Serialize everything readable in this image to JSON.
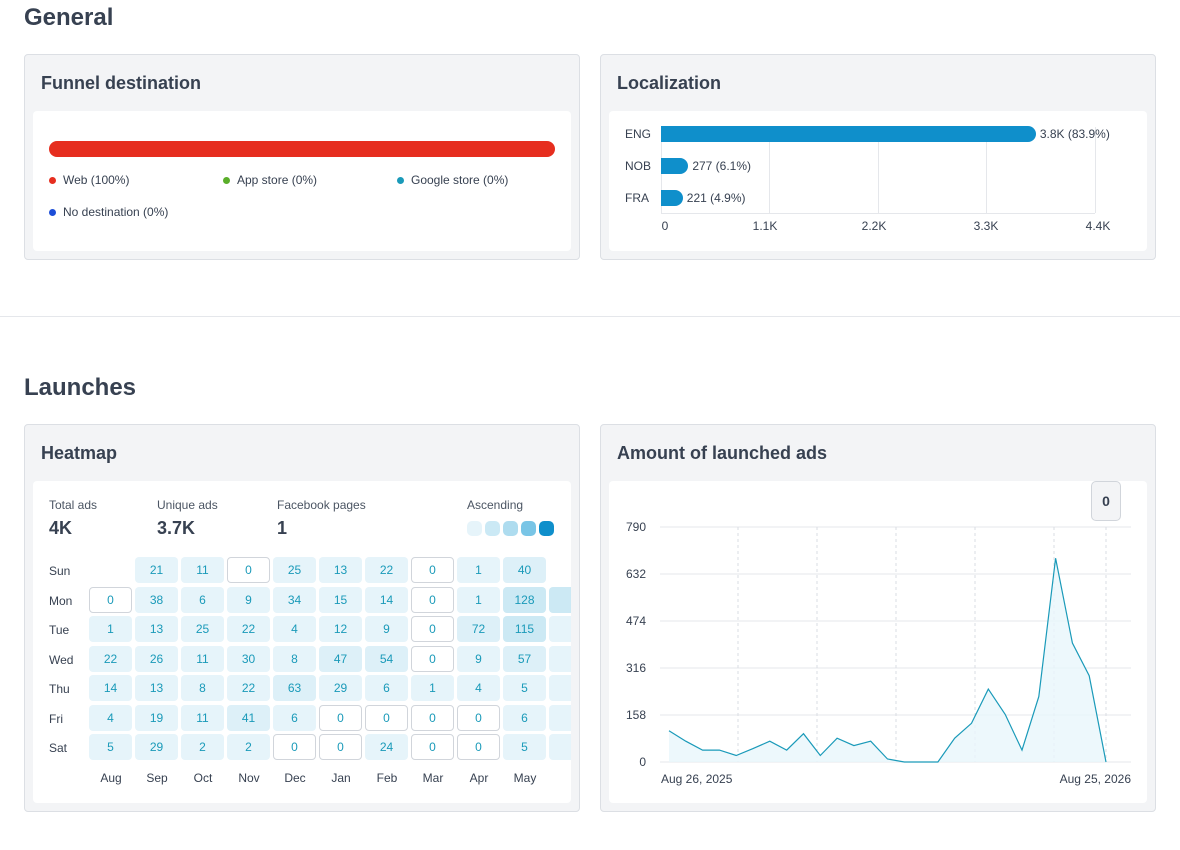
{
  "sections": {
    "general": "General",
    "launches": "Launches"
  },
  "funnel": {
    "title": "Funnel destination",
    "bar_color": "#e62e1f",
    "legend": [
      {
        "label": "Web (100%)",
        "color": "#e62e1f"
      },
      {
        "label": "App store (0%)",
        "color": "#5aae2a"
      },
      {
        "label": "Google store (0%)",
        "color": "#1a9ab9"
      },
      {
        "label": "No destination (0%)",
        "color": "#1d4ed8"
      }
    ]
  },
  "localization": {
    "title": "Localization",
    "bar_color": "#0f8fcb",
    "max": 4400,
    "ticks": [
      "0",
      "1.1K",
      "2.2K",
      "3.3K",
      "4.4K"
    ],
    "rows": [
      {
        "label": "ENG",
        "value": 3800,
        "value_label": "3.8K (83.9%)"
      },
      {
        "label": "NOB",
        "value": 277,
        "value_label": "277 (6.1%)"
      },
      {
        "label": "FRA",
        "value": 221,
        "value_label": "221 (4.9%)"
      }
    ]
  },
  "heatmap": {
    "title": "Heatmap",
    "stats": [
      {
        "label": "Total ads",
        "value": "4K"
      },
      {
        "label": "Unique ads",
        "value": "3.7K"
      },
      {
        "label": "Facebook pages",
        "value": "1"
      }
    ],
    "legend_label": "Ascending",
    "legend_colors": [
      "#e6f4fa",
      "#cbe9f5",
      "#aedcef",
      "#79c5e6",
      "#0f8fcb"
    ],
    "days": [
      "Sun",
      "Mon",
      "Tue",
      "Wed",
      "Thu",
      "Fri",
      "Sat"
    ],
    "months": [
      "Aug",
      "Sep",
      "Oct",
      "Nov",
      "Dec",
      "Jan",
      "Feb",
      "Mar",
      "Apr",
      "May"
    ],
    "values": [
      [
        null,
        "21",
        "11",
        "0",
        "25",
        "13",
        "22",
        "0",
        "1",
        "40"
      ],
      [
        "0",
        "38",
        "6",
        "9",
        "34",
        "15",
        "14",
        "0",
        "1",
        "128"
      ],
      [
        "1",
        "13",
        "25",
        "22",
        "4",
        "12",
        "9",
        "0",
        "72",
        "115"
      ],
      [
        "22",
        "26",
        "11",
        "30",
        "8",
        "47",
        "54",
        "0",
        "9",
        "57"
      ],
      [
        "14",
        "13",
        "8",
        "22",
        "63",
        "29",
        "6",
        "1",
        "4",
        "5"
      ],
      [
        "4",
        "19",
        "11",
        "41",
        "6",
        "0",
        "0",
        "0",
        "0",
        "6"
      ],
      [
        "5",
        "29",
        "2",
        "2",
        "0",
        "0",
        "24",
        "0",
        "0",
        "5"
      ]
    ]
  },
  "launched": {
    "title": "Amount of launched ads",
    "badge": "0",
    "chart_data": {
      "type": "area",
      "title": "Amount of launched ads",
      "y_ticks": [
        0,
        158,
        316,
        474,
        632,
        790
      ],
      "ylim": [
        0,
        790
      ],
      "x_labels": [
        "Aug 26, 2025",
        "Aug 25, 2026"
      ],
      "line_color": "#1a9ab9",
      "values": [
        105,
        70,
        40,
        40,
        22,
        45,
        70,
        40,
        95,
        22,
        80,
        55,
        70,
        10,
        0,
        0,
        0,
        80,
        130,
        245,
        160,
        40,
        220,
        685,
        400,
        290,
        0
      ]
    }
  }
}
